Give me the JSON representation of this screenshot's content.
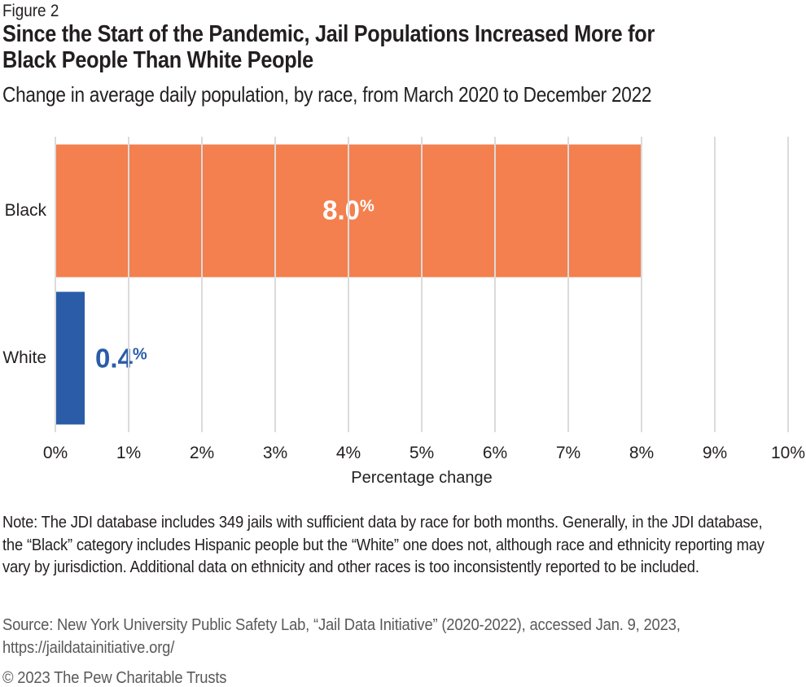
{
  "figure_label": "Figure 2",
  "title_line1": "Since the Start of the Pandemic, Jail Populations Increased More for",
  "title_line2": "Black People Than White People",
  "subtitle": "Change in average daily population, by race, from March 2020 to December 2022",
  "chart_data": {
    "type": "bar",
    "orientation": "horizontal",
    "title": "Since the Start of the Pandemic, Jail Populations Increased More for Black People Than White People",
    "subtitle": "Change in average daily population, by race, from March 2020 to December 2022",
    "categories": [
      "Black",
      "White"
    ],
    "values": [
      8.0,
      0.4
    ],
    "series": [
      {
        "category": "Black",
        "value": 8.0,
        "value_label": "8.0",
        "value_suffix": "%",
        "bar_color": "#F3804E",
        "label_color": "#FFFFFF",
        "label_placement": "inside-center"
      },
      {
        "category": "White",
        "value": 0.4,
        "value_label": "0.4",
        "value_suffix": "%",
        "bar_color": "#2A5CA8",
        "label_color": "#2A5CA8",
        "label_placement": "outside-right"
      }
    ],
    "xlabel": "Percentage change",
    "ylabel": "",
    "xlim": [
      0,
      10
    ],
    "x_tick_labels": [
      "0%",
      "1%",
      "2%",
      "3%",
      "4%",
      "5%",
      "6%",
      "7%",
      "8%",
      "9%",
      "10%"
    ],
    "grid": "vertical gridlines on",
    "gridline_color": "#DBDBDB",
    "legend": "none"
  },
  "note": "Note: The JDI database includes 349 jails with sufficient data by race for both months. Generally, in the JDI database, the “Black” category includes Hispanic people but the “White” one does not, although race and ethnicity reporting may vary by jurisdiction. Additional data on ethnicity and other races is too inconsistently reported to be included.",
  "source": "Source: New York University Public Safety Lab, “Jail Data Initiative” (2020-2022), accessed Jan. 9, 2023, https://jaildatainitiative.org/",
  "copyright": "© 2023 The Pew Charitable Trusts"
}
